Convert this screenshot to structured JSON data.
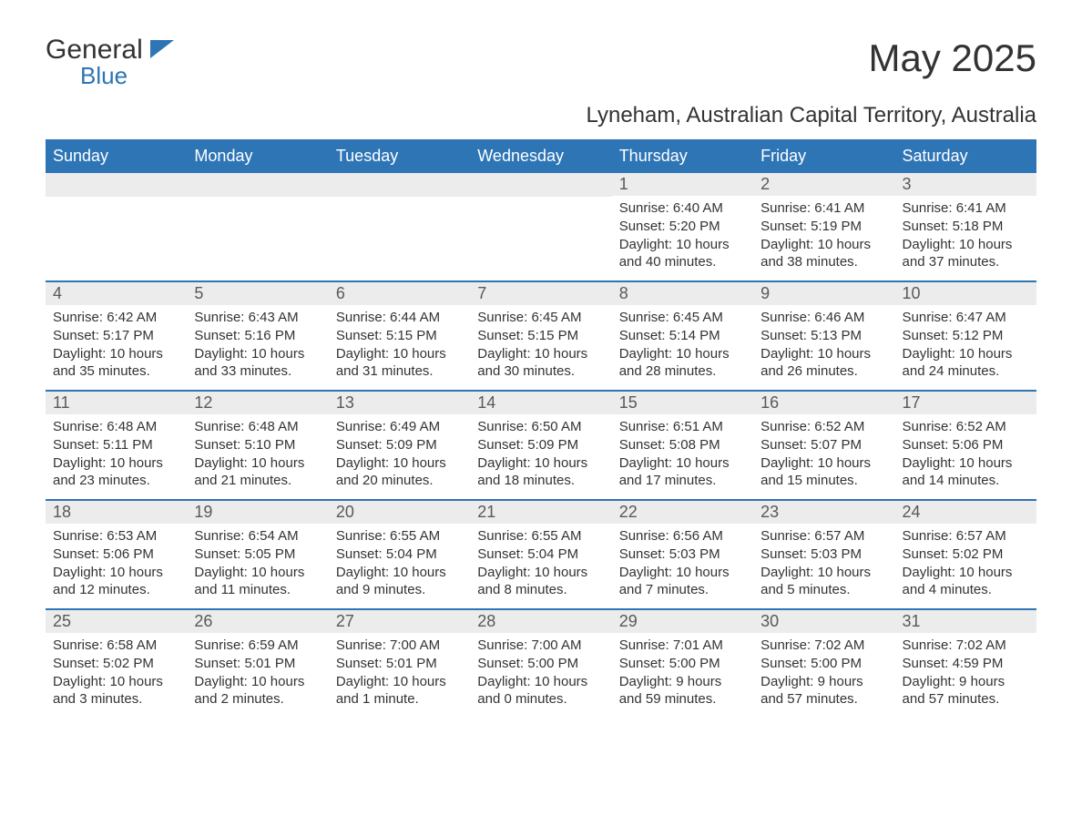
{
  "colors": {
    "brand_blue": "#2e75b6",
    "header_bg": "#2e75b6",
    "header_text": "#ffffff",
    "daynum_bg": "#ececec",
    "daynum_text": "#595959",
    "body_text": "#333333",
    "page_bg": "#ffffff"
  },
  "fonts": {
    "family": "Arial",
    "title_size_pt": 32,
    "subtitle_size_pt": 18,
    "header_size_pt": 14,
    "daynum_size_pt": 14,
    "body_size_pt": 11
  },
  "logo": {
    "text1": "General",
    "text2": "Blue"
  },
  "title": "May 2025",
  "subtitle": "Lyneham, Australian Capital Territory, Australia",
  "day_headers": [
    "Sunday",
    "Monday",
    "Tuesday",
    "Wednesday",
    "Thursday",
    "Friday",
    "Saturday"
  ],
  "weeks": [
    [
      null,
      null,
      null,
      null,
      {
        "n": "1",
        "sunrise": "6:40 AM",
        "sunset": "5:20 PM",
        "daylight": "10 hours and 40 minutes."
      },
      {
        "n": "2",
        "sunrise": "6:41 AM",
        "sunset": "5:19 PM",
        "daylight": "10 hours and 38 minutes."
      },
      {
        "n": "3",
        "sunrise": "6:41 AM",
        "sunset": "5:18 PM",
        "daylight": "10 hours and 37 minutes."
      }
    ],
    [
      {
        "n": "4",
        "sunrise": "6:42 AM",
        "sunset": "5:17 PM",
        "daylight": "10 hours and 35 minutes."
      },
      {
        "n": "5",
        "sunrise": "6:43 AM",
        "sunset": "5:16 PM",
        "daylight": "10 hours and 33 minutes."
      },
      {
        "n": "6",
        "sunrise": "6:44 AM",
        "sunset": "5:15 PM",
        "daylight": "10 hours and 31 minutes."
      },
      {
        "n": "7",
        "sunrise": "6:45 AM",
        "sunset": "5:15 PM",
        "daylight": "10 hours and 30 minutes."
      },
      {
        "n": "8",
        "sunrise": "6:45 AM",
        "sunset": "5:14 PM",
        "daylight": "10 hours and 28 minutes."
      },
      {
        "n": "9",
        "sunrise": "6:46 AM",
        "sunset": "5:13 PM",
        "daylight": "10 hours and 26 minutes."
      },
      {
        "n": "10",
        "sunrise": "6:47 AM",
        "sunset": "5:12 PM",
        "daylight": "10 hours and 24 minutes."
      }
    ],
    [
      {
        "n": "11",
        "sunrise": "6:48 AM",
        "sunset": "5:11 PM",
        "daylight": "10 hours and 23 minutes."
      },
      {
        "n": "12",
        "sunrise": "6:48 AM",
        "sunset": "5:10 PM",
        "daylight": "10 hours and 21 minutes."
      },
      {
        "n": "13",
        "sunrise": "6:49 AM",
        "sunset": "5:09 PM",
        "daylight": "10 hours and 20 minutes."
      },
      {
        "n": "14",
        "sunrise": "6:50 AM",
        "sunset": "5:09 PM",
        "daylight": "10 hours and 18 minutes."
      },
      {
        "n": "15",
        "sunrise": "6:51 AM",
        "sunset": "5:08 PM",
        "daylight": "10 hours and 17 minutes."
      },
      {
        "n": "16",
        "sunrise": "6:52 AM",
        "sunset": "5:07 PM",
        "daylight": "10 hours and 15 minutes."
      },
      {
        "n": "17",
        "sunrise": "6:52 AM",
        "sunset": "5:06 PM",
        "daylight": "10 hours and 14 minutes."
      }
    ],
    [
      {
        "n": "18",
        "sunrise": "6:53 AM",
        "sunset": "5:06 PM",
        "daylight": "10 hours and 12 minutes."
      },
      {
        "n": "19",
        "sunrise": "6:54 AM",
        "sunset": "5:05 PM",
        "daylight": "10 hours and 11 minutes."
      },
      {
        "n": "20",
        "sunrise": "6:55 AM",
        "sunset": "5:04 PM",
        "daylight": "10 hours and 9 minutes."
      },
      {
        "n": "21",
        "sunrise": "6:55 AM",
        "sunset": "5:04 PM",
        "daylight": "10 hours and 8 minutes."
      },
      {
        "n": "22",
        "sunrise": "6:56 AM",
        "sunset": "5:03 PM",
        "daylight": "10 hours and 7 minutes."
      },
      {
        "n": "23",
        "sunrise": "6:57 AM",
        "sunset": "5:03 PM",
        "daylight": "10 hours and 5 minutes."
      },
      {
        "n": "24",
        "sunrise": "6:57 AM",
        "sunset": "5:02 PM",
        "daylight": "10 hours and 4 minutes."
      }
    ],
    [
      {
        "n": "25",
        "sunrise": "6:58 AM",
        "sunset": "5:02 PM",
        "daylight": "10 hours and 3 minutes."
      },
      {
        "n": "26",
        "sunrise": "6:59 AM",
        "sunset": "5:01 PM",
        "daylight": "10 hours and 2 minutes."
      },
      {
        "n": "27",
        "sunrise": "7:00 AM",
        "sunset": "5:01 PM",
        "daylight": "10 hours and 1 minute."
      },
      {
        "n": "28",
        "sunrise": "7:00 AM",
        "sunset": "5:00 PM",
        "daylight": "10 hours and 0 minutes."
      },
      {
        "n": "29",
        "sunrise": "7:01 AM",
        "sunset": "5:00 PM",
        "daylight": "9 hours and 59 minutes."
      },
      {
        "n": "30",
        "sunrise": "7:02 AM",
        "sunset": "5:00 PM",
        "daylight": "9 hours and 57 minutes."
      },
      {
        "n": "31",
        "sunrise": "7:02 AM",
        "sunset": "4:59 PM",
        "daylight": "9 hours and 57 minutes."
      }
    ]
  ],
  "labels": {
    "sunrise": "Sunrise:",
    "sunset": "Sunset:",
    "daylight": "Daylight:"
  }
}
